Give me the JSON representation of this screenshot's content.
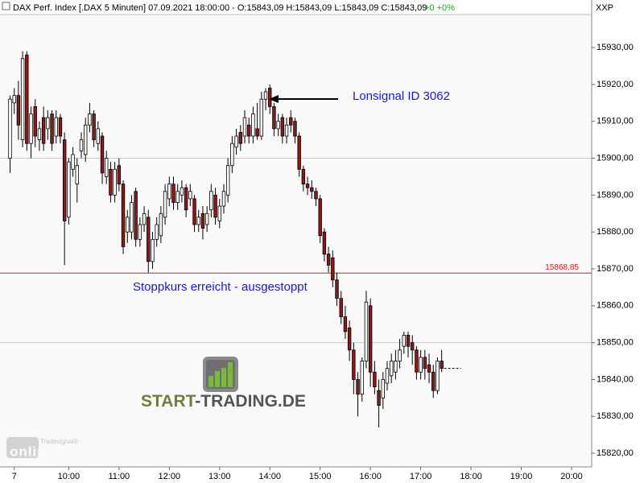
{
  "chart_data": {
    "type": "candlestick",
    "title": "DAX Perf. Index [.DAX  5 Minuten] 07.09.2021 18:00:00 - O:15843,09 H:15843,09 L:15843,09 C:15843,09",
    "change": "+0 +0%",
    "axis_label": "XXP",
    "annotations": [
      "Lonsignal ID 3062",
      "Stoppkurs erreicht - ausgestoppt"
    ],
    "logo": {
      "part1": "START",
      "part2": "-TRADING.DE"
    },
    "watermark": {
      "brand": "Tradesignal®",
      "word": "online"
    },
    "up_color": "#ffffff",
    "down_color": "#8b1a1a",
    "stop_line": {
      "value": 15868.85,
      "label": "15868,85",
      "color": "#d42020"
    },
    "grid_lines": [
      15900,
      15850
    ],
    "xlim": [
      "08:38",
      "20:24"
    ],
    "xticks": [
      {
        "value": "08:55",
        "label": "7"
      },
      "10:00",
      "11:00",
      "12:00",
      "13:00",
      "14:00",
      "15:00",
      "16:00",
      "17:00",
      "18:00",
      "19:00",
      "20:00"
    ],
    "ylim": [
      15816.3,
      15942.9
    ],
    "yticks": [
      {
        "value": 15820,
        "label": "15820,00"
      },
      {
        "value": 15830,
        "label": "15830,00"
      },
      {
        "value": 15840,
        "label": "15840,00"
      },
      {
        "value": 15850,
        "label": "15850,00"
      },
      {
        "value": 15860,
        "label": "15860,00"
      },
      {
        "value": 15870,
        "label": "15870,00"
      },
      {
        "value": 15880,
        "label": "15880,00"
      },
      {
        "value": 15890,
        "label": "15890,00"
      },
      {
        "value": 15900,
        "label": "15900,00"
      },
      {
        "value": 15910,
        "label": "15910,00"
      },
      {
        "value": 15920,
        "label": "15920,00"
      },
      {
        "value": 15930,
        "label": "15930,00"
      }
    ],
    "x": [
      "08:50",
      "08:55",
      "09:00",
      "09:05",
      "09:10",
      "09:15",
      "09:20",
      "09:25",
      "09:30",
      "09:35",
      "09:40",
      "09:45",
      "09:50",
      "09:55",
      "10:00",
      "10:05",
      "10:10",
      "10:15",
      "10:20",
      "10:25",
      "10:30",
      "10:35",
      "10:40",
      "10:45",
      "10:50",
      "10:55",
      "11:00",
      "11:05",
      "11:10",
      "11:15",
      "11:20",
      "11:25",
      "11:30",
      "11:35",
      "11:40",
      "11:45",
      "11:50",
      "11:55",
      "12:00",
      "12:05",
      "12:10",
      "12:15",
      "12:20",
      "12:25",
      "12:30",
      "12:35",
      "12:40",
      "12:45",
      "12:50",
      "12:55",
      "13:00",
      "13:05",
      "13:10",
      "13:15",
      "13:20",
      "13:25",
      "13:30",
      "13:35",
      "13:40",
      "13:45",
      "13:50",
      "13:55",
      "14:00",
      "14:05",
      "14:10",
      "14:15",
      "14:20",
      "14:25",
      "14:30",
      "14:35",
      "14:40",
      "14:45",
      "14:50",
      "14:55",
      "15:00",
      "15:05",
      "15:10",
      "15:15",
      "15:20",
      "15:25",
      "15:30",
      "15:35",
      "15:40",
      "15:45",
      "15:50",
      "15:55",
      "16:00",
      "16:05",
      "16:10",
      "16:15",
      "16:20",
      "16:25",
      "16:30",
      "16:35",
      "16:40",
      "16:45",
      "16:50",
      "16:55",
      "17:00",
      "17:05",
      "17:10",
      "17:15",
      "17:20",
      "17:25"
    ],
    "open": [
      15900,
      15915,
      15917,
      15905,
      15928,
      15904,
      15914,
      15905,
      15911,
      15908,
      15912,
      15906,
      15911,
      15905,
      15884,
      15897,
      15893,
      15902,
      15901,
      15909,
      15912,
      15904,
      15906,
      15895,
      15897,
      15890,
      15898,
      15893,
      15880,
      15880,
      15891,
      15878,
      15882,
      15884,
      15872,
      15878,
      15879,
      15884,
      15889,
      15893,
      15888,
      15890,
      15892,
      15889,
      15889,
      15882,
      15885,
      15882,
      15886,
      15890,
      15883,
      15887,
      15890,
      15898,
      15903,
      15907,
      15906,
      15909,
      15906,
      15908,
      15906,
      15916,
      15919,
      15914,
      15908,
      15911,
      15906,
      15911,
      15910,
      15906,
      15897,
      15893,
      15892,
      15891,
      15889,
      15880,
      15874,
      15873,
      15867,
      15862,
      15857,
      15854,
      15848,
      15840,
      15836,
      15845,
      15860,
      15842,
      15837,
      15835,
      15839,
      15841,
      15842,
      15845,
      15849,
      15852,
      15850,
      15848,
      15842,
      15846,
      15844,
      15842,
      15837,
      15845
    ],
    "high": [
      15917,
      15919,
      15921,
      15929,
      15929,
      15914,
      15916,
      15910,
      15914,
      15913,
      15913,
      15913,
      15912,
      15907,
      15900,
      15903,
      15900,
      15907,
      15911,
      15915,
      15913,
      15910,
      15907,
      15902,
      15899,
      15899,
      15900,
      15894,
      15886,
      15890,
      15892,
      15884,
      15887,
      15886,
      15880,
      15884,
      15887,
      15893,
      15895,
      15895,
      15893,
      15894,
      15893,
      15893,
      15890,
      15886,
      15887,
      15887,
      15893,
      15892,
      15889,
      15893,
      15900,
      15906,
      15908,
      15909,
      15913,
      15911,
      15914,
      15915,
      15918,
      15919,
      15920,
      15915,
      15912,
      15912,
      15911,
      15913,
      15911,
      15907,
      15898,
      15895,
      15894,
      15892,
      15890,
      15881,
      15876,
      15875,
      15869,
      15864,
      15860,
      15856,
      15850,
      15842,
      15846,
      15864,
      15862,
      15845,
      15840,
      15842,
      15845,
      15847,
      15848,
      15851,
      15853,
      15853,
      15852,
      15849,
      15848,
      15848,
      15847,
      15844,
      15846,
      15848
    ],
    "low": [
      15896,
      15912,
      15905,
      15903,
      15902,
      15900,
      15903,
      15902,
      15902,
      15905,
      15902,
      15904,
      15904,
      15871,
      15882,
      15895,
      15888,
      15900,
      15899,
      15907,
      15903,
      15902,
      15893,
      15893,
      15888,
      15888,
      15891,
      15874,
      15877,
      15878,
      15876,
      15876,
      15880,
      15869,
      15870,
      15876,
      15877,
      15882,
      15887,
      15886,
      15886,
      15888,
      15884,
      15887,
      15880,
      15880,
      15878,
      15880,
      15884,
      15882,
      15881,
      15885,
      15888,
      15896,
      15901,
      15902,
      15904,
      15904,
      15904,
      15905,
      15905,
      15913,
      15912,
      15906,
      15906,
      15904,
      15904,
      15907,
      15904,
      15895,
      15891,
      15890,
      15889,
      15887,
      15877,
      15872,
      15869,
      15865,
      15860,
      15855,
      15851,
      15845,
      15836,
      15830,
      15834,
      15843,
      15838,
      15836,
      15827,
      15832,
      15837,
      15839,
      15840,
      15843,
      15847,
      15846,
      15844,
      15840,
      15840,
      15840,
      15839,
      15835,
      15836,
      15842
    ],
    "close": [
      15916,
      15917,
      15909,
      15927,
      15904,
      15912,
      15906,
      15908,
      15904,
      15911,
      15904,
      15911,
      15906,
      15883,
      15899,
      15901,
      15898,
      15905,
      15909,
      15912,
      15905,
      15908,
      15896,
      15900,
      15890,
      15897,
      15893,
      15876,
      15884,
      15888,
      15878,
      15882,
      15885,
      15872,
      15878,
      15882,
      15885,
      15891,
      15893,
      15888,
      15891,
      15892,
      15886,
      15891,
      15882,
      15884,
      15881,
      15885,
      15891,
      15884,
      15887,
      15891,
      15898,
      15904,
      15906,
      15904,
      15911,
      15906,
      15912,
      15906,
      15916,
      15918,
      15914,
      15908,
      15910,
      15906,
      15909,
      15909,
      15906,
      15897,
      15893,
      15892,
      15891,
      15889,
      15879,
      15874,
      15871,
      15867,
      15862,
      15857,
      15853,
      15848,
      15840,
      15836,
      15845,
      15861,
      15842,
      15838,
      15833,
      15840,
      15843,
      15845,
      15845,
      15848,
      15852,
      15849,
      15848,
      15842,
      15846,
      15843,
      15842,
      15837,
      15845,
      15843
    ]
  }
}
